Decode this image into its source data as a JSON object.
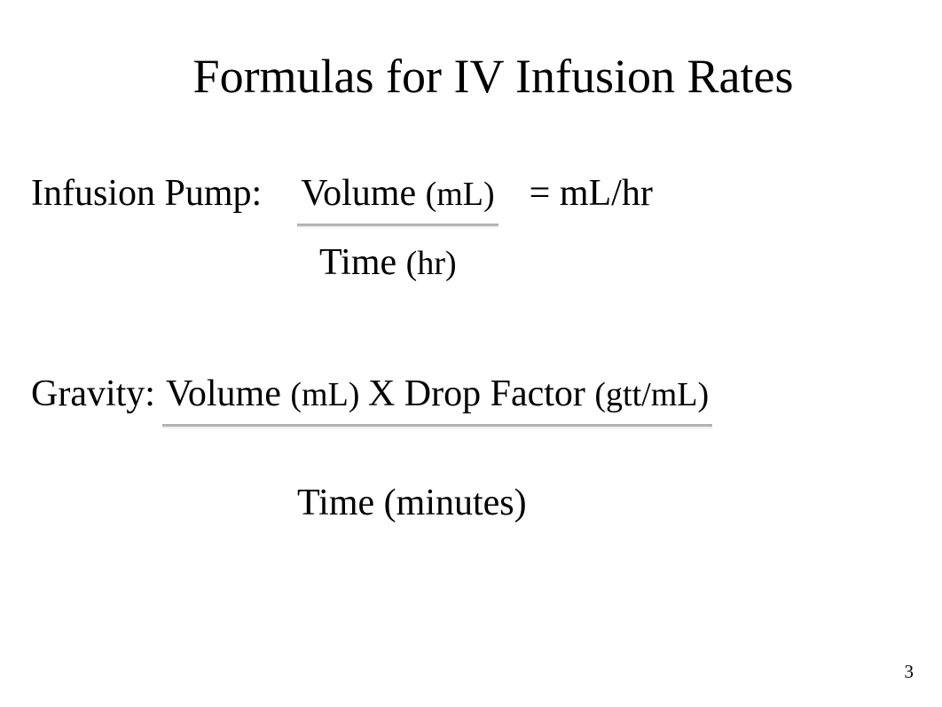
{
  "slide": {
    "title": "Formulas for IV Infusion Rates",
    "pump": {
      "label": "Infusion Pump:",
      "numerator_a": "Volume ",
      "numerator_unit": "(mL)",
      "result": "= mL/hr",
      "denom_a": "Time ",
      "denom_unit": "(hr)"
    },
    "gravity": {
      "label": "Gravity: ",
      "numerator_a": "Volume ",
      "numerator_unit": "(mL) ",
      "numerator_b": "X Drop Factor ",
      "numerator_unit2": "(gtt/mL)",
      "denom": "Time (minutes)"
    },
    "page_number": "3"
  },
  "style": {
    "background_color": "#ffffff",
    "text_color": "#000000",
    "font_family": "Times New Roman, serif",
    "title_fontsize": 54,
    "body_fontsize": 42,
    "underline_color": "#d0d0d0"
  }
}
